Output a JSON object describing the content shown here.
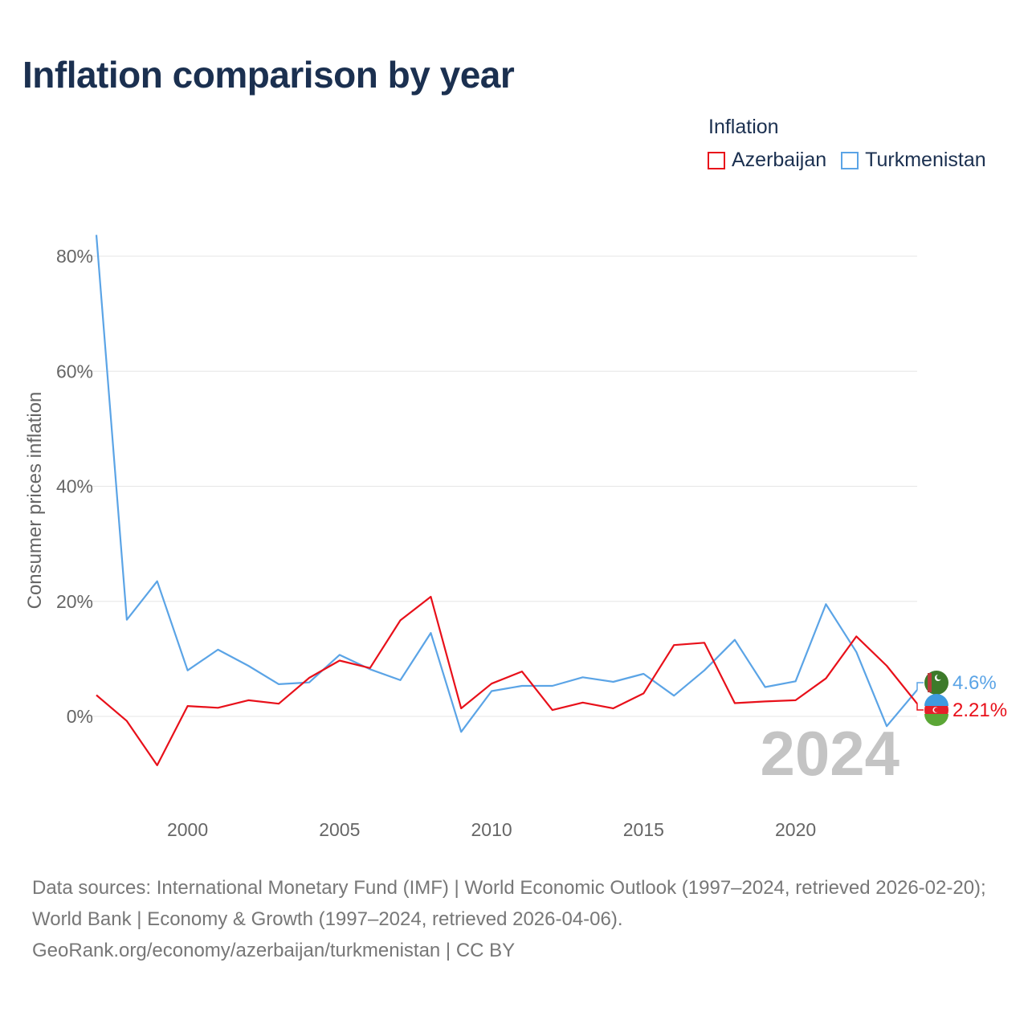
{
  "title": "Inflation comparison by year",
  "legend": {
    "title": "Inflation",
    "items": [
      {
        "name": "Azerbaijan",
        "color": "#e8101a"
      },
      {
        "name": "Turkmenistan",
        "color": "#5ba4e6"
      }
    ]
  },
  "chart_data": {
    "type": "line",
    "title": "Inflation comparison by year",
    "xlabel": "",
    "ylabel": "Consumer prices inflation",
    "x": [
      1997,
      1998,
      1999,
      2000,
      2001,
      2002,
      2003,
      2004,
      2005,
      2006,
      2007,
      2008,
      2009,
      2010,
      2011,
      2012,
      2013,
      2014,
      2015,
      2016,
      2017,
      2018,
      2019,
      2020,
      2021,
      2022,
      2023,
      2024
    ],
    "xticks": [
      2000,
      2005,
      2010,
      2015,
      2020
    ],
    "xlim": [
      1997,
      2024
    ],
    "ylim": [
      -14,
      84
    ],
    "yticks": [
      0,
      20,
      40,
      60,
      80
    ],
    "ytick_labels": [
      "0%",
      "20%",
      "40%",
      "60%",
      "80%"
    ],
    "grid": true,
    "series": [
      {
        "name": "Azerbaijan",
        "color": "#e8101a",
        "values": [
          3.7,
          -0.8,
          -8.5,
          1.8,
          1.5,
          2.8,
          2.2,
          6.7,
          9.7,
          8.4,
          16.7,
          20.8,
          1.4,
          5.7,
          7.8,
          1.1,
          2.4,
          1.4,
          4.0,
          12.4,
          12.8,
          2.3,
          2.6,
          2.8,
          6.6,
          13.9,
          8.8,
          2.21
        ],
        "end_label": "2.21%"
      },
      {
        "name": "Turkmenistan",
        "color": "#5ba4e6",
        "values": [
          83.7,
          16.8,
          23.5,
          8.0,
          11.6,
          8.8,
          5.6,
          5.9,
          10.7,
          8.2,
          6.3,
          14.5,
          -2.7,
          4.4,
          5.3,
          5.3,
          6.8,
          6.0,
          7.4,
          3.6,
          8.0,
          13.3,
          5.1,
          6.1,
          19.5,
          11.2,
          -1.7,
          4.6
        ],
        "end_label": "4.6%"
      }
    ],
    "year_watermark": "2024"
  },
  "footer": {
    "line1": "Data sources: International Monetary Fund (IMF) | World Economic Outlook (1997–2024, retrieved 2026-02-20); World Bank | Economy & Growth (1997–2024, retrieved 2026-04-06).",
    "line2": "GeoRank.org/economy/azerbaijan/turkmenistan | CC BY"
  }
}
